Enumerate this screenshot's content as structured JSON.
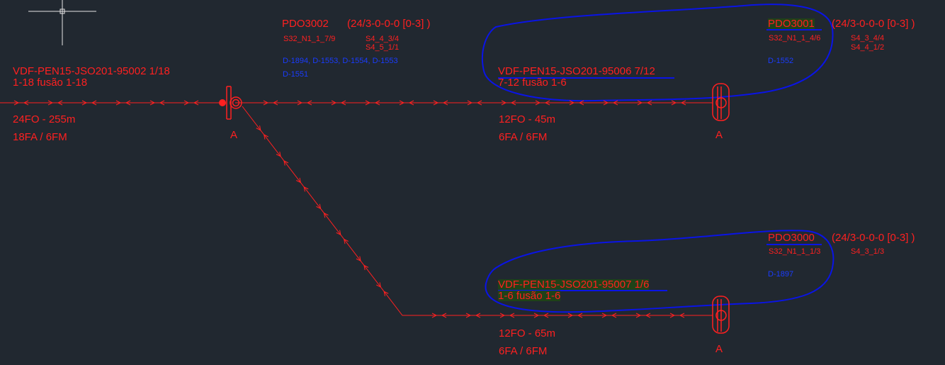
{
  "colors": {
    "background": "#212830",
    "cable": "#ff2020",
    "circuit_ids": "#1a3cff",
    "markup": "#0a14e6",
    "crosshair": "#e6e6e6",
    "highlight": "#1e4614"
  },
  "icons": {
    "cursor": "crosshair-cursor-icon",
    "splice_node": "splice-enclosure-icon"
  },
  "splitters": {
    "pdo3002": {
      "name": "PDO3002",
      "spec": "(24/3-0-0-0 [0-3] )",
      "port_a": "S32_N1_1_7/9",
      "port_b1": "S4_4_3/4",
      "port_b2": "S4_5_1/1",
      "ids_line1": "D-1894, D-1553, D-1554, D-1553",
      "ids_line2": "D-1551"
    },
    "pdo3001": {
      "name": "PDO3001",
      "spec": "(24/3-0-0-0 [0-3] )",
      "port_a": "S32_N1_1_4/6",
      "port_b1": "S4_3_4/4",
      "port_b2": "S4_4_1/2",
      "ids": "D-1552"
    },
    "pdo3000": {
      "name": "PDO3000",
      "spec": "(24/3-0-0-0 [0-3] )",
      "port_a": "S32_N1_1_1/3",
      "port_b": "S4_3_1/3",
      "ids": "D-1897"
    }
  },
  "cables": {
    "main": {
      "name": "VDF-PEN15-JSO201-95002 1/18",
      "fusion": "1-18 fusão 1-18",
      "fiber": "24FO - 255m",
      "split": "18FA / 6FM"
    },
    "upper": {
      "name": "VDF-PEN15-JSO201-95006 7/12",
      "fusion": "7-12 fusão 1-6",
      "fiber": "12FO - 45m",
      "split": "6FA / 6FM"
    },
    "lower": {
      "name": "VDF-PEN15-JSO201-95007 1/6",
      "fusion": "1-6 fusão 1-6",
      "fiber": "12FO - 65m",
      "split": "6FA / 6FM"
    }
  },
  "nodes": {
    "left": "A",
    "upper_right": "A",
    "lower_right": "A"
  }
}
